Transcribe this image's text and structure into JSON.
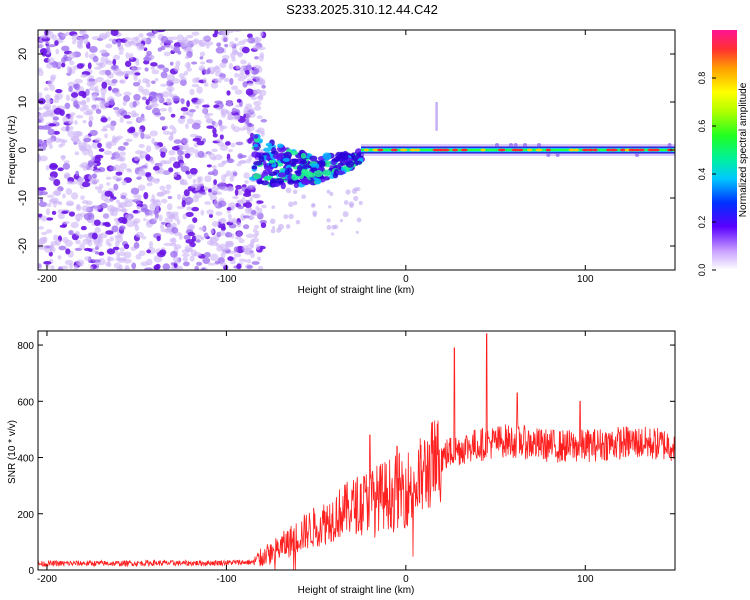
{
  "title": "S233.2025.310.12.44.C42",
  "chart_data": [
    {
      "type": "heatmap",
      "ylabel": "Frequency (Hz)",
      "xlabel": "Height of straight line (km)",
      "xlim": [
        -205,
        150
      ],
      "ylim": [
        -25,
        25
      ],
      "xticks": [
        -200,
        -100,
        0,
        100
      ],
      "yticks": [
        20,
        10,
        0,
        -10,
        -20
      ],
      "ytick_labels": [
        "20",
        "10",
        "0",
        "-10",
        "-20"
      ],
      "noise_region_x": [
        -205,
        -85
      ],
      "transition_region_x": [
        -85,
        -25
      ],
      "signal_frequency_hz": 0,
      "colorbar": {
        "label": "Normalized spectral amplitude",
        "range": [
          0,
          1
        ],
        "ticks": [
          0.0,
          0.2,
          0.4,
          0.6,
          0.8
        ],
        "tick_labels": [
          "0.0",
          "0.2",
          "0.4",
          "0.6",
          "0.8"
        ]
      }
    },
    {
      "type": "line",
      "ylabel": "SNR (10 * v/v)",
      "xlabel": "Height of straight line (km)",
      "xlim": [
        -205,
        150
      ],
      "ylim": [
        0,
        850
      ],
      "xticks": [
        -200,
        -100,
        0,
        100
      ],
      "yticks": [
        0,
        200,
        400,
        600,
        800
      ],
      "line_color": "#ff2020",
      "series": [
        {
          "name": "SNR",
          "x": [
            -205,
            -180,
            -160,
            -140,
            -120,
            -100,
            -85,
            -75,
            -65,
            -55,
            -45,
            -35,
            -25,
            -15,
            -5,
            5,
            15,
            25,
            35,
            45,
            55,
            65,
            75,
            85,
            95,
            105,
            115,
            125,
            135,
            150
          ],
          "y": [
            22,
            24,
            23,
            25,
            24,
            26,
            28,
            60,
            100,
            140,
            170,
            210,
            240,
            260,
            280,
            300,
            380,
            420,
            440,
            450,
            460,
            455,
            445,
            440,
            440,
            445,
            450,
            455,
            450,
            445
          ]
        }
      ],
      "spikes": [
        {
          "x": -20,
          "y": 480
        },
        {
          "x": -5,
          "y": 440
        },
        {
          "x": 27,
          "y": 790
        },
        {
          "x": 45,
          "y": 840
        },
        {
          "x": 62,
          "y": 630
        },
        {
          "x": 97,
          "y": 600
        }
      ]
    }
  ]
}
